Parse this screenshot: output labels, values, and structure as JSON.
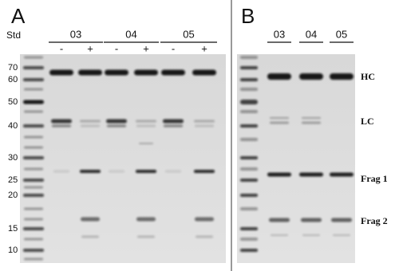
{
  "panel_a": {
    "label": "A",
    "std_label": "Std",
    "groups": [
      {
        "name": "03",
        "lanes": [
          "-",
          "+"
        ]
      },
      {
        "name": "04",
        "lanes": [
          "-",
          "+"
        ]
      },
      {
        "name": "05",
        "lanes": [
          "-",
          "+"
        ]
      }
    ],
    "markers": [
      70,
      60,
      50,
      40,
      30,
      25,
      20,
      15,
      10
    ]
  },
  "panel_b": {
    "label": "B",
    "groups": [
      "03",
      "04",
      "05"
    ],
    "band_labels": [
      "HC",
      "LC",
      "Frag 1",
      "Frag 2"
    ]
  }
}
